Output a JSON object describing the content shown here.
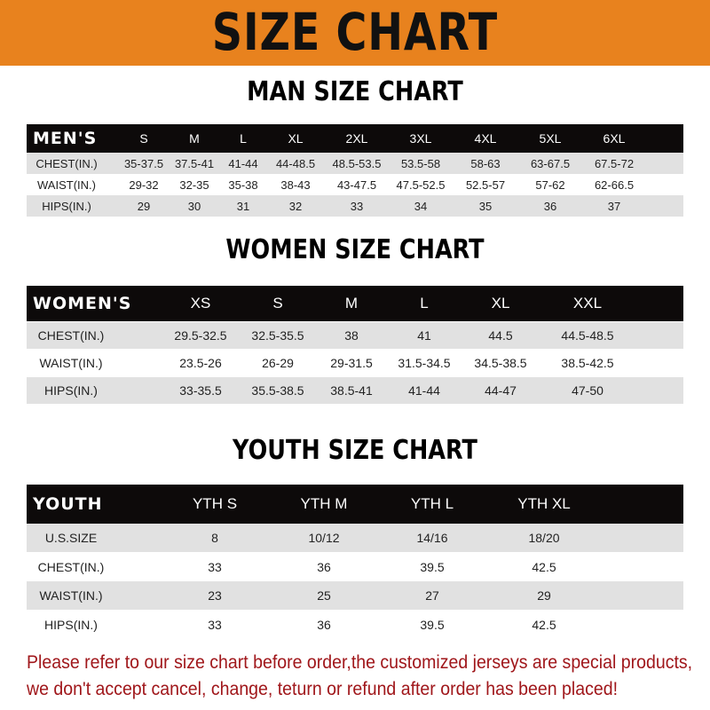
{
  "banner": {
    "title": "SIZE CHART",
    "color": "#e8821e"
  },
  "men": {
    "title": "MAN SIZE CHART",
    "header": [
      "MEN'S",
      "S",
      "M",
      "L",
      "XL",
      "2XL",
      "3XL",
      "4XL",
      "5XL",
      "6XL"
    ],
    "rows": [
      [
        "CHEST(IN.)",
        "35-37.5",
        "37.5-41",
        "41-44",
        "44-48.5",
        "48.5-53.5",
        "53.5-58",
        "58-63",
        "63-67.5",
        "67.5-72"
      ],
      [
        "WAIST(IN.)",
        "29-32",
        "32-35",
        "35-38",
        "38-43",
        "43-47.5",
        "47.5-52.5",
        "52.5-57",
        "57-62",
        "62-66.5"
      ],
      [
        "HIPS(IN.)",
        "29",
        "30",
        "31",
        "32",
        "33",
        "34",
        "35",
        "36",
        "37"
      ]
    ]
  },
  "women": {
    "title": "WOMEN SIZE CHART",
    "header": [
      "WOMEN'S",
      "XS",
      "S",
      "M",
      "L",
      "XL",
      "XXL"
    ],
    "rows": [
      [
        "CHEST(IN.)",
        "29.5-32.5",
        "32.5-35.5",
        "38",
        "41",
        "44.5",
        "44.5-48.5"
      ],
      [
        "WAIST(IN.)",
        "23.5-26",
        "26-29",
        "29-31.5",
        "31.5-34.5",
        "34.5-38.5",
        "38.5-42.5"
      ],
      [
        "HIPS(IN.)",
        "33-35.5",
        "35.5-38.5",
        "38.5-41",
        "41-44",
        "44-47",
        "47-50"
      ]
    ]
  },
  "youth": {
    "title": "YOUTH SIZE CHART",
    "header": [
      "YOUTH",
      "YTH S",
      "YTH M",
      "YTH L",
      "YTH XL"
    ],
    "rows": [
      [
        "U.S.SIZE",
        "8",
        "10/12",
        "14/16",
        "18/20"
      ],
      [
        "CHEST(IN.)",
        "33",
        "36",
        "39.5",
        "42.5"
      ],
      [
        "WAIST(IN.)",
        "23",
        "25",
        "27",
        "29"
      ],
      [
        "HIPS(IN.)",
        "33",
        "36",
        "39.5",
        "42.5"
      ]
    ]
  },
  "notice": {
    "line1": "Please refer to our size chart before order,the customized jerseys are special products,",
    "line2": "we don't accept cancel, change, teturn or refund after order has been placed!",
    "color": "#a0171b"
  }
}
